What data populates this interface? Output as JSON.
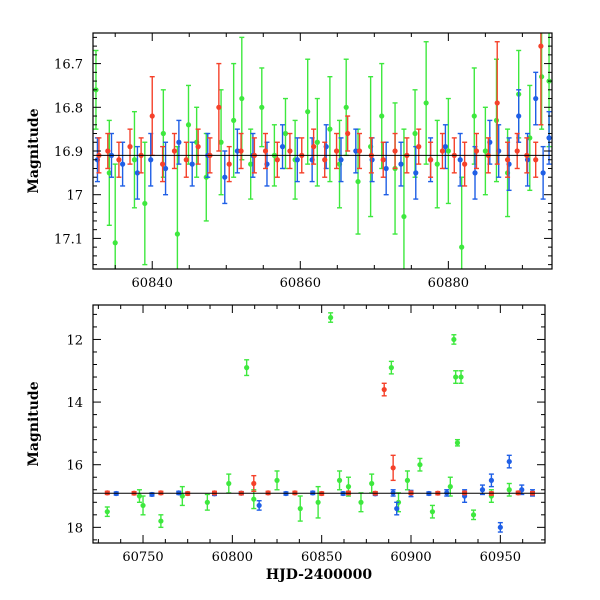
{
  "colors": {
    "green": "#3ee83e",
    "blue": "#1f5fe6",
    "red": "#f5412a",
    "axis": "#000000",
    "background": "#ffffff"
  },
  "chart_data": [
    {
      "type": "scatter",
      "title": "",
      "xlabel": "",
      "ylabel": "Magnitude",
      "xlim": [
        60832,
        60894
      ],
      "ylim": [
        17.17,
        16.63
      ],
      "y_inverted": true,
      "xticks": [
        60840,
        60860,
        60880
      ],
      "yticks": [
        16.7,
        16.8,
        16.9,
        17,
        17.1
      ],
      "grid": false,
      "reference_line": 16.91,
      "series": [
        {
          "name": "green",
          "color": "#3ee83e",
          "points": [
            [
              60832.4,
              16.76,
              0.09
            ],
            [
              60834.2,
              16.95,
              0.12
            ],
            [
              60835.0,
              17.11,
              0.18
            ],
            [
              60837.6,
              16.92,
              0.11
            ],
            [
              60839.0,
              17.02,
              0.14
            ],
            [
              60841.5,
              16.86,
              0.1
            ],
            [
              60843.4,
              17.09,
              0.2
            ],
            [
              60844.9,
              16.84,
              0.09
            ],
            [
              60846.0,
              16.88,
              0.08
            ],
            [
              60847.3,
              16.96,
              0.1
            ],
            [
              60849.3,
              16.88,
              0.12
            ],
            [
              60851.0,
              16.83,
              0.13
            ],
            [
              60852.1,
              16.78,
              0.14
            ],
            [
              60853.3,
              16.93,
              0.08
            ],
            [
              60854.8,
              16.8,
              0.09
            ],
            [
              60856.5,
              16.91,
              0.07
            ],
            [
              60858.0,
              16.86,
              0.08
            ],
            [
              60859.3,
              16.92,
              0.09
            ],
            [
              60861.0,
              16.81,
              0.12
            ],
            [
              60862.3,
              16.88,
              0.1
            ],
            [
              60864.0,
              16.85,
              0.12
            ],
            [
              60865.3,
              16.93,
              0.1
            ],
            [
              60866.2,
              16.8,
              0.11
            ],
            [
              60867.8,
              16.97,
              0.12
            ],
            [
              60869.5,
              16.89,
              0.16
            ],
            [
              60871.0,
              16.82,
              0.12
            ],
            [
              60872.8,
              16.94,
              0.15
            ],
            [
              60874.0,
              17.05,
              0.2
            ],
            [
              60875.5,
              16.86,
              0.1
            ],
            [
              60877.0,
              16.79,
              0.14
            ],
            [
              60878.5,
              16.93,
              0.1
            ],
            [
              60880.0,
              16.9,
              0.12
            ],
            [
              60881.8,
              17.12,
              0.16
            ],
            [
              60883.5,
              16.82,
              0.11
            ],
            [
              60885.0,
              16.9,
              0.1
            ],
            [
              60886.5,
              16.83,
              0.14
            ],
            [
              60888.0,
              16.95,
              0.1
            ],
            [
              60889.5,
              16.77,
              0.1
            ],
            [
              60891.0,
              16.87,
              0.12
            ],
            [
              60892.6,
              16.73,
              0.12
            ],
            [
              60893.6,
              16.74,
              0.15
            ]
          ]
        },
        {
          "name": "blue",
          "color": "#1f5fe6",
          "points": [
            [
              60832.6,
              16.92,
              0.05
            ],
            [
              60834.5,
              16.91,
              0.05
            ],
            [
              60836.0,
              16.93,
              0.05
            ],
            [
              60838.0,
              16.95,
              0.06
            ],
            [
              60839.8,
              16.92,
              0.06
            ],
            [
              60841.8,
              16.94,
              0.06
            ],
            [
              60843.6,
              16.88,
              0.05
            ],
            [
              60845.4,
              16.93,
              0.05
            ],
            [
              60847.5,
              16.91,
              0.05
            ],
            [
              60849.8,
              16.96,
              0.06
            ],
            [
              60851.5,
              16.9,
              0.05
            ],
            [
              60853.6,
              16.91,
              0.05
            ],
            [
              60855.5,
              16.93,
              0.05
            ],
            [
              60857.6,
              16.89,
              0.05
            ],
            [
              60859.6,
              16.92,
              0.05
            ],
            [
              60861.6,
              16.92,
              0.05
            ],
            [
              60863.5,
              16.89,
              0.05
            ],
            [
              60865.5,
              16.92,
              0.05
            ],
            [
              60867.5,
              16.9,
              0.05
            ],
            [
              60869.7,
              16.92,
              0.05
            ],
            [
              60871.6,
              16.94,
              0.06
            ],
            [
              60873.6,
              16.93,
              0.05
            ],
            [
              60875.6,
              16.95,
              0.06
            ],
            [
              60877.6,
              16.92,
              0.05
            ],
            [
              60879.6,
              16.89,
              0.05
            ],
            [
              60881.6,
              16.92,
              0.06
            ],
            [
              60883.6,
              16.95,
              0.06
            ],
            [
              60885.6,
              16.88,
              0.05
            ],
            [
              60886.8,
              16.9,
              0.06
            ],
            [
              60888.2,
              16.93,
              0.06
            ],
            [
              60889.5,
              16.82,
              0.06
            ],
            [
              60890.7,
              16.92,
              0.06
            ],
            [
              60891.8,
              16.78,
              0.06
            ],
            [
              60892.8,
              16.95,
              0.06
            ],
            [
              60893.6,
              16.87,
              0.06
            ]
          ]
        },
        {
          "name": "red",
          "color": "#f5412a",
          "points": [
            [
              60832.8,
              16.91,
              0.04
            ],
            [
              60834.0,
              16.9,
              0.04
            ],
            [
              60835.5,
              16.92,
              0.04
            ],
            [
              60837.0,
              16.89,
              0.04
            ],
            [
              60838.5,
              16.91,
              0.04
            ],
            [
              60840.0,
              16.82,
              0.09
            ],
            [
              60841.4,
              16.93,
              0.04
            ],
            [
              60843.0,
              16.9,
              0.04
            ],
            [
              60844.6,
              16.92,
              0.04
            ],
            [
              60846.2,
              16.89,
              0.04
            ],
            [
              60847.8,
              16.91,
              0.04
            ],
            [
              60849.0,
              16.8,
              0.1
            ],
            [
              60850.4,
              16.93,
              0.04
            ],
            [
              60852.0,
              16.9,
              0.04
            ],
            [
              60853.8,
              16.91,
              0.04
            ],
            [
              60855.3,
              16.9,
              0.04
            ],
            [
              60856.9,
              16.92,
              0.04
            ],
            [
              60858.6,
              16.9,
              0.04
            ],
            [
              60860.2,
              16.91,
              0.04
            ],
            [
              60861.8,
              16.89,
              0.04
            ],
            [
              60863.3,
              16.92,
              0.04
            ],
            [
              60864.9,
              16.9,
              0.04
            ],
            [
              60866.4,
              16.86,
              0.04
            ],
            [
              60868.0,
              16.9,
              0.04
            ],
            [
              60869.6,
              16.91,
              0.04
            ],
            [
              60871.2,
              16.92,
              0.04
            ],
            [
              60872.8,
              16.9,
              0.04
            ],
            [
              60874.4,
              16.91,
              0.04
            ],
            [
              60876.0,
              16.89,
              0.04
            ],
            [
              60877.6,
              16.92,
              0.04
            ],
            [
              60879.2,
              16.9,
              0.04
            ],
            [
              60880.8,
              16.91,
              0.04
            ],
            [
              60882.2,
              16.93,
              0.05
            ],
            [
              60883.8,
              16.9,
              0.04
            ],
            [
              60885.4,
              16.91,
              0.04
            ],
            [
              60886.6,
              16.79,
              0.14
            ],
            [
              60888.0,
              16.92,
              0.04
            ],
            [
              60889.3,
              16.9,
              0.04
            ],
            [
              60890.6,
              16.91,
              0.04
            ],
            [
              60891.8,
              16.92,
              0.04
            ],
            [
              60892.5,
              16.66,
              0.18
            ]
          ]
        }
      ]
    },
    {
      "type": "scatter",
      "title": "",
      "xlabel": "HJD-2400000",
      "ylabel": "Magnitude",
      "xlim": [
        60722,
        60975
      ],
      "ylim": [
        18.5,
        10.9
      ],
      "y_inverted": true,
      "xticks": [
        60750,
        60800,
        60850,
        60900,
        60950
      ],
      "yticks": [
        12,
        14,
        16,
        18
      ],
      "grid": false,
      "reference_line": 16.91,
      "series": [
        {
          "name": "green",
          "color": "#3ee83e",
          "points": [
            [
              60730,
              17.5,
              0.15
            ],
            [
              60748,
              17.0,
              0.2
            ],
            [
              60750,
              17.3,
              0.3
            ],
            [
              60760,
              17.8,
              0.2
            ],
            [
              60772,
              17.0,
              0.3
            ],
            [
              60786,
              17.2,
              0.25
            ],
            [
              60798,
              16.6,
              0.3
            ],
            [
              60808,
              12.9,
              0.25
            ],
            [
              60812,
              17.1,
              0.3
            ],
            [
              60825,
              16.5,
              0.3
            ],
            [
              60838,
              17.4,
              0.4
            ],
            [
              60848,
              17.2,
              0.5
            ],
            [
              60855,
              11.3,
              0.15
            ],
            [
              60860,
              16.5,
              0.3
            ],
            [
              60865,
              16.7,
              0.3
            ],
            [
              60872,
              17.2,
              0.3
            ],
            [
              60878,
              16.6,
              0.3
            ],
            [
              60889,
              12.9,
              0.2
            ],
            [
              60893,
              17.2,
              0.3
            ],
            [
              60898,
              16.5,
              0.3
            ],
            [
              60905,
              16.0,
              0.2
            ],
            [
              60912,
              17.5,
              0.2
            ],
            [
              60922,
              16.7,
              0.3
            ],
            [
              60924,
              12.0,
              0.15
            ],
            [
              60925,
              13.2,
              0.2
            ],
            [
              60926,
              15.3,
              0.1
            ],
            [
              60928,
              13.2,
              0.2
            ],
            [
              60935,
              17.6,
              0.15
            ],
            [
              60945,
              17.0,
              0.2
            ],
            [
              60955,
              16.8,
              0.2
            ]
          ]
        },
        {
          "name": "blue",
          "color": "#1f5fe6",
          "points": [
            [
              60735,
              16.92,
              0.05
            ],
            [
              60755,
              16.95,
              0.05
            ],
            [
              60770,
              16.9,
              0.05
            ],
            [
              60790,
              16.93,
              0.05
            ],
            [
              60805,
              16.91,
              0.05
            ],
            [
              60815,
              17.3,
              0.15
            ],
            [
              60830,
              16.92,
              0.05
            ],
            [
              60845,
              16.9,
              0.05
            ],
            [
              60862,
              16.92,
              0.05
            ],
            [
              60880,
              16.93,
              0.05
            ],
            [
              60890,
              16.9,
              0.1
            ],
            [
              60892,
              17.4,
              0.2
            ],
            [
              60900,
              16.92,
              0.1
            ],
            [
              60910,
              16.92,
              0.05
            ],
            [
              60920,
              16.9,
              0.1
            ],
            [
              60930,
              17.0,
              0.2
            ],
            [
              60940,
              16.8,
              0.15
            ],
            [
              60945,
              16.5,
              0.2
            ],
            [
              60950,
              18.0,
              0.15
            ],
            [
              60955,
              15.9,
              0.2
            ],
            [
              60962,
              16.8,
              0.15
            ],
            [
              60968,
              16.9,
              0.1
            ]
          ]
        },
        {
          "name": "red",
          "color": "#f5412a",
          "points": [
            [
              60730,
              16.9,
              0.05
            ],
            [
              60745,
              16.91,
              0.05
            ],
            [
              60760,
              16.9,
              0.05
            ],
            [
              60775,
              16.92,
              0.05
            ],
            [
              60790,
              16.9,
              0.05
            ],
            [
              60805,
              16.91,
              0.05
            ],
            [
              60812,
              16.6,
              0.25
            ],
            [
              60820,
              16.9,
              0.05
            ],
            [
              60835,
              16.9,
              0.05
            ],
            [
              60850,
              16.92,
              0.05
            ],
            [
              60865,
              16.9,
              0.05
            ],
            [
              60880,
              16.91,
              0.05
            ],
            [
              60885,
              13.6,
              0.2
            ],
            [
              60890,
              16.1,
              0.4
            ],
            [
              60900,
              16.9,
              0.05
            ],
            [
              60915,
              16.91,
              0.05
            ],
            [
              60930,
              16.9,
              0.05
            ],
            [
              60945,
              16.92,
              0.05
            ],
            [
              60960,
              16.9,
              0.05
            ],
            [
              60968,
              16.91,
              0.05
            ]
          ]
        }
      ]
    }
  ]
}
